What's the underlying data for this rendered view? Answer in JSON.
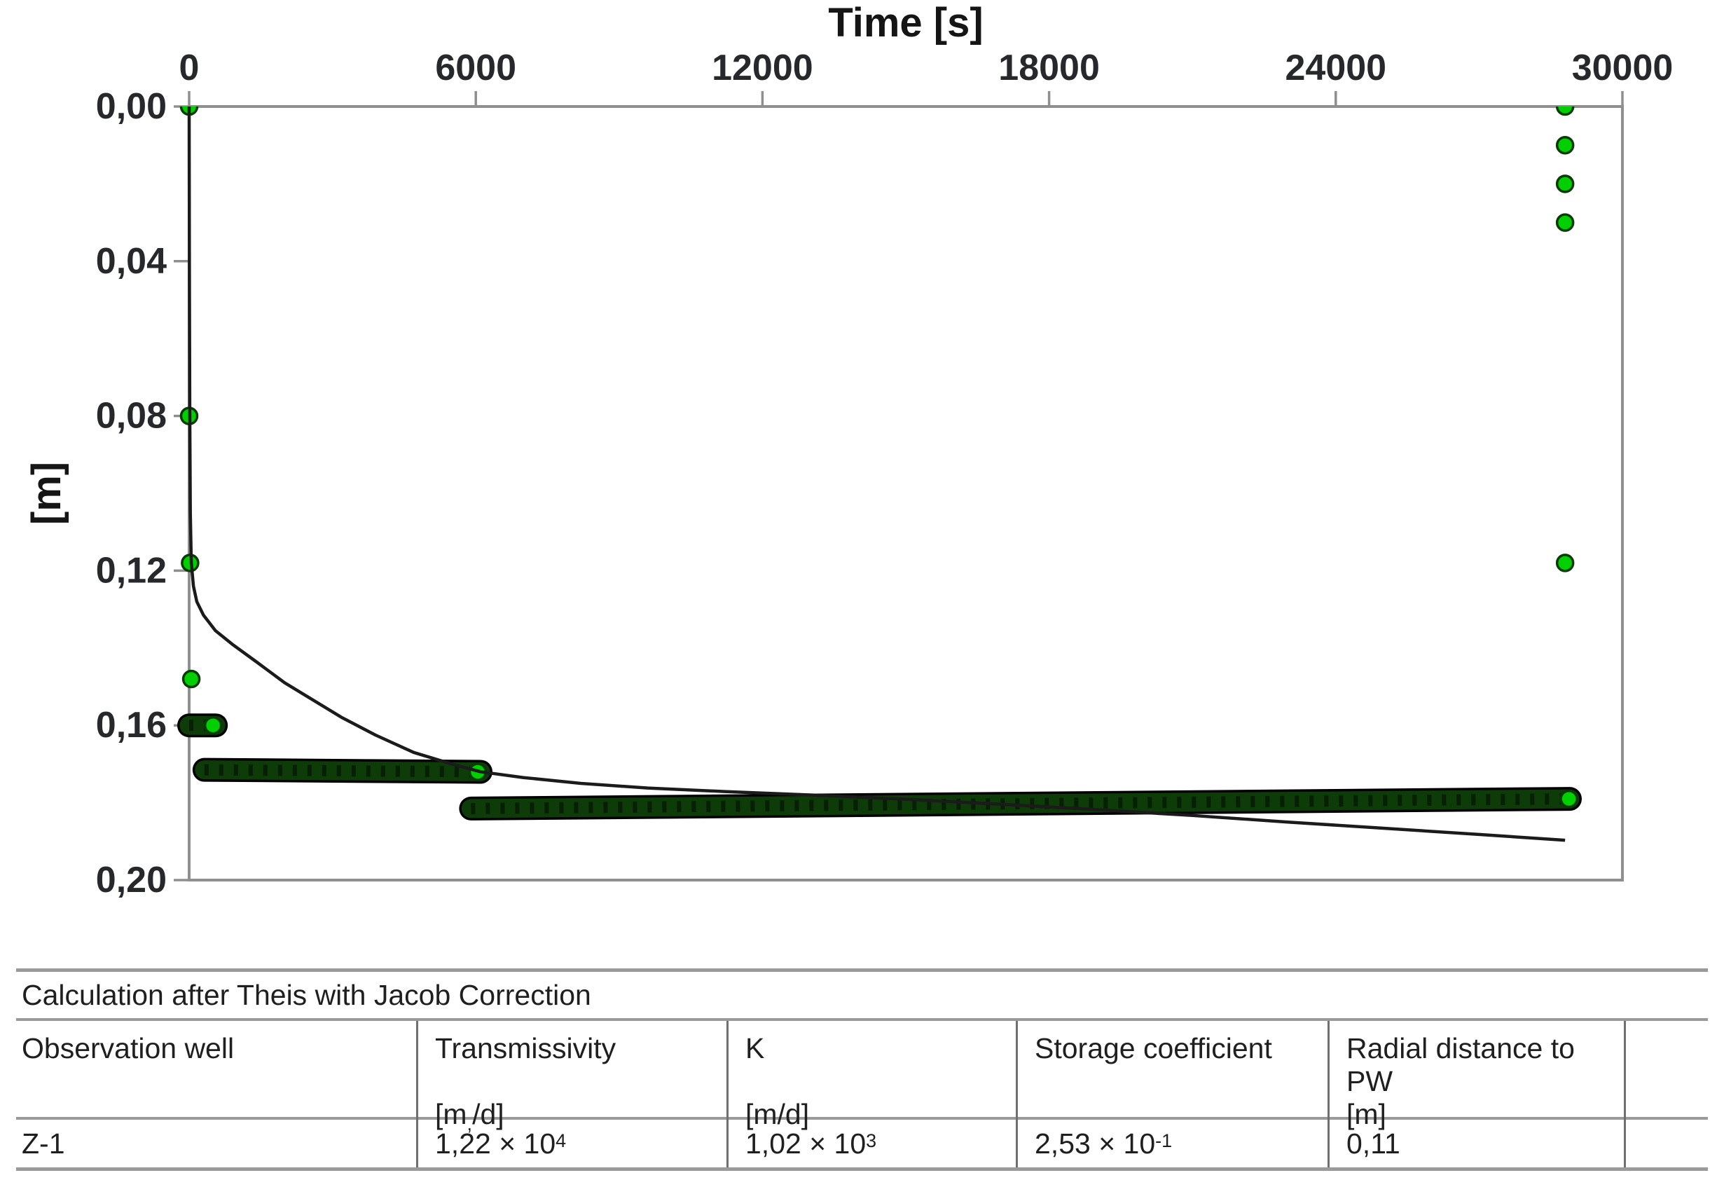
{
  "page": {
    "background": "#ffffff"
  },
  "chart_data": {
    "type": "scatter",
    "title": "",
    "x_axis": {
      "title": "Time [s]",
      "position": "top",
      "min": 0,
      "max": 30000,
      "tick_values": [
        0,
        6000,
        12000,
        18000,
        24000,
        30000
      ],
      "tick_labels": [
        "0",
        "6000",
        "12000",
        "18000",
        "24000",
        "30000"
      ]
    },
    "y_axis": {
      "title": "[m]",
      "inverted": true,
      "min": 0.0,
      "max": 0.2,
      "tick_values": [
        0.0,
        0.04,
        0.08,
        0.12,
        0.16,
        0.2
      ],
      "tick_labels": [
        "0,00",
        "0,04",
        "0,08",
        "0,12",
        "0,16",
        "0,20"
      ]
    },
    "grid": false,
    "legend": false,
    "colors": {
      "point_fill": "#00cf00",
      "point_stroke": "#0a3a06",
      "run_fill": "#0e3c08",
      "run_outline": "#000000",
      "run_texture": "#071f04",
      "curve": "#1b1b1b",
      "axis": "#8f8f8f"
    },
    "series": [
      {
        "name": "measured-drawdown-points",
        "type": "scatter",
        "marker": "circle",
        "points": [
          [
            0,
            0.0
          ],
          [
            0,
            0.08
          ],
          [
            20,
            0.118
          ],
          [
            45,
            0.148
          ],
          [
            28800,
            0.0
          ],
          [
            28800,
            0.01
          ],
          [
            28800,
            0.02
          ],
          [
            28800,
            0.03
          ],
          [
            28800,
            0.118
          ]
        ]
      },
      {
        "name": "measured-drawdown-dense-runs",
        "type": "run",
        "runs": [
          {
            "t_start": 0,
            "t_end": 560,
            "s_start": 0.16,
            "s_end": 0.16,
            "end_dot": [
              500,
              0.16
            ]
          },
          {
            "t_start": 320,
            "t_end": 6100,
            "s_start": 0.1715,
            "s_end": 0.172,
            "end_dot": [
              6040,
              0.172
            ]
          },
          {
            "t_start": 5900,
            "t_end": 28900,
            "s_start": 0.1815,
            "s_end": 0.179,
            "end_dot": [
              28880,
              0.179
            ]
          }
        ]
      },
      {
        "name": "theis-fitted-curve",
        "type": "line",
        "points": [
          [
            0,
            0.0
          ],
          [
            6,
            0.045
          ],
          [
            14,
            0.08
          ],
          [
            25,
            0.105
          ],
          [
            45,
            0.118
          ],
          [
            90,
            0.124
          ],
          [
            160,
            0.128
          ],
          [
            300,
            0.1315
          ],
          [
            550,
            0.1355
          ],
          [
            900,
            0.139
          ],
          [
            1400,
            0.1435
          ],
          [
            2000,
            0.149
          ],
          [
            2600,
            0.1535
          ],
          [
            3200,
            0.158
          ],
          [
            3900,
            0.1625
          ],
          [
            4700,
            0.167
          ],
          [
            5500,
            0.17
          ],
          [
            6100,
            0.172
          ],
          [
            7000,
            0.1735
          ],
          [
            8200,
            0.175
          ],
          [
            9600,
            0.1762
          ],
          [
            11200,
            0.1771
          ],
          [
            13000,
            0.178
          ],
          [
            15000,
            0.1791
          ],
          [
            17000,
            0.1804
          ],
          [
            19000,
            0.1818
          ],
          [
            21000,
            0.1833
          ],
          [
            23000,
            0.185
          ],
          [
            25000,
            0.1866
          ],
          [
            27000,
            0.1882
          ],
          [
            28800,
            0.1897
          ]
        ]
      }
    ]
  },
  "table": {
    "title": "Calculation after Theis with Jacob Correction",
    "columns": [
      {
        "label": "Observation well",
        "unit_pre": "",
        "unit_sub": "",
        "unit_post": ""
      },
      {
        "label": "Transmissivity",
        "unit_pre": "[m",
        "unit_sub": ",",
        "unit_post": "/d]"
      },
      {
        "label": "K",
        "unit_pre": "[m/d]",
        "unit_sub": "",
        "unit_post": ""
      },
      {
        "label": "Storage coefficient",
        "unit_pre": "",
        "unit_sub": "",
        "unit_post": ""
      },
      {
        "label": "Radial distance to PW",
        "unit_pre": "[m]",
        "unit_sub": "",
        "unit_post": ""
      },
      {
        "label": "",
        "unit_pre": "",
        "unit_sub": "",
        "unit_post": ""
      }
    ],
    "row": {
      "cells": [
        {
          "base": "Z-1",
          "exp": ""
        },
        {
          "base": "1,22 × 10",
          "exp": "4"
        },
        {
          "base": "1,02 × 10",
          "exp": "3"
        },
        {
          "base": "2,53 × 10",
          "exp": "-1"
        },
        {
          "base": "0,11",
          "exp": ""
        },
        {
          "base": "",
          "exp": ""
        }
      ]
    }
  }
}
